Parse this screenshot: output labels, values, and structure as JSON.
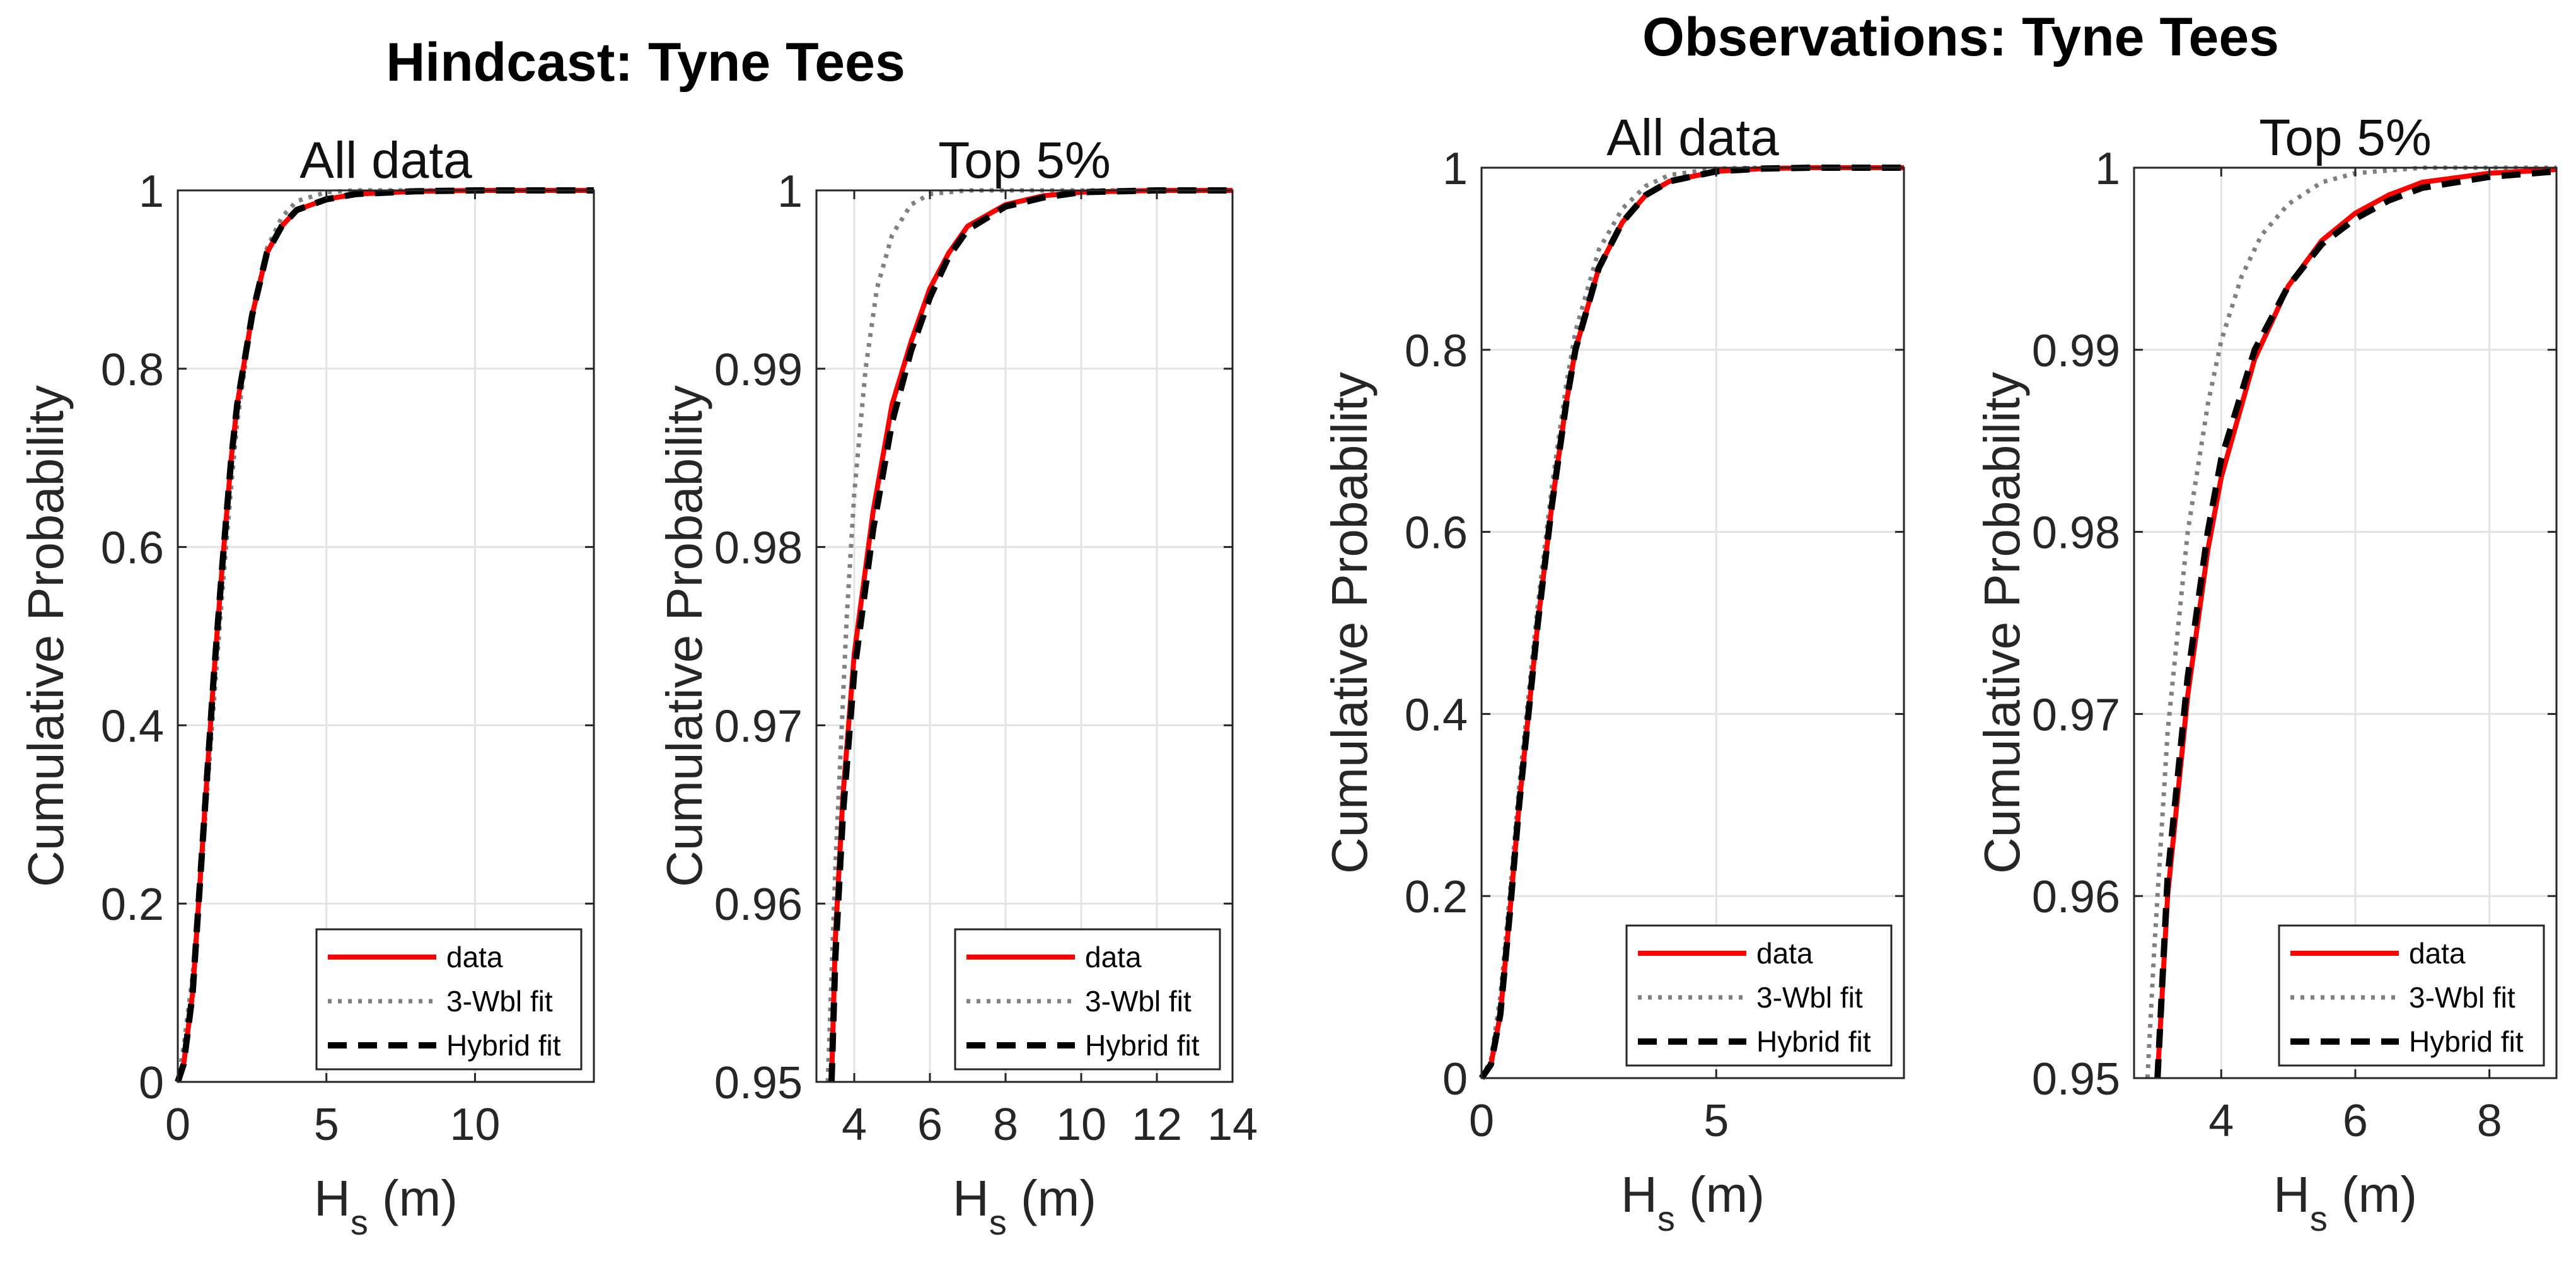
{
  "figure": {
    "group_titles": [
      "Hindcast: Tyne Tees",
      "Observations: Tyne Tees"
    ]
  },
  "legend": {
    "entries": [
      {
        "label": "data",
        "color": "#ff0000",
        "style": "solid"
      },
      {
        "label": "3-Wbl fit",
        "color": "#808080",
        "style": "dotted"
      },
      {
        "label": "Hybrid fit",
        "color": "#000000",
        "style": "dashed"
      }
    ],
    "placement": "bottom-right"
  },
  "chart_data": [
    {
      "type": "line",
      "group": "Hindcast: Tyne Tees",
      "title": "All data",
      "xlabel": "H_s (m)",
      "ylabel": "Cumulative Probability",
      "xlim": [
        0,
        14
      ],
      "ylim": [
        0,
        1
      ],
      "xticks": [
        0,
        5,
        10
      ],
      "yticks": [
        0,
        0.2,
        0.4,
        0.6,
        0.8,
        1
      ],
      "ytick_labels": [
        "0",
        "0.2",
        "0.4",
        "0.6",
        "0.8",
        "1"
      ],
      "grid": true,
      "series": [
        {
          "name": "data",
          "x": [
            0,
            0.2,
            0.5,
            0.8,
            1.0,
            1.2,
            1.5,
            1.8,
            2.0,
            2.5,
            3.0,
            3.5,
            4.0,
            5.0,
            6.0,
            8.0,
            10.0,
            14.0
          ],
          "y": [
            0,
            0.02,
            0.1,
            0.25,
            0.35,
            0.45,
            0.58,
            0.7,
            0.76,
            0.86,
            0.93,
            0.96,
            0.978,
            0.99,
            0.996,
            0.999,
            1.0,
            1.0
          ]
        },
        {
          "name": "3-Wbl fit",
          "x": [
            0,
            0.2,
            0.5,
            0.8,
            1.0,
            1.2,
            1.5,
            1.8,
            2.0,
            2.5,
            3.0,
            3.5,
            4.0,
            5.0,
            6.0,
            8.0,
            14.0
          ],
          "y": [
            0,
            0.04,
            0.12,
            0.24,
            0.33,
            0.42,
            0.55,
            0.67,
            0.74,
            0.86,
            0.935,
            0.97,
            0.988,
            0.998,
            1.0,
            1.0,
            1.0
          ]
        },
        {
          "name": "Hybrid fit",
          "x": [
            0,
            0.2,
            0.5,
            0.8,
            1.0,
            1.2,
            1.5,
            1.8,
            2.0,
            2.5,
            3.0,
            3.5,
            4.0,
            5.0,
            6.0,
            8.0,
            10.0,
            14.0
          ],
          "y": [
            0,
            0.02,
            0.1,
            0.25,
            0.35,
            0.45,
            0.58,
            0.7,
            0.76,
            0.86,
            0.93,
            0.96,
            0.978,
            0.99,
            0.996,
            0.999,
            1.0,
            1.0
          ]
        }
      ]
    },
    {
      "type": "line",
      "group": "Hindcast: Tyne Tees",
      "title": "Top 5%",
      "xlabel": "H_s (m)",
      "ylabel": "Cumulative Probability",
      "xlim": [
        3,
        14
      ],
      "ylim": [
        0.95,
        1
      ],
      "xticks": [
        4,
        6,
        8,
        10,
        12,
        14
      ],
      "yticks": [
        0.95,
        0.96,
        0.97,
        0.98,
        0.99,
        1
      ],
      "ytick_labels": [
        "0.95",
        "0.96",
        "0.97",
        "0.98",
        "0.99",
        "1"
      ],
      "grid": true,
      "series": [
        {
          "name": "data",
          "x": [
            3.4,
            3.5,
            3.7,
            4.0,
            4.5,
            5.0,
            5.5,
            6.0,
            6.5,
            7.0,
            8.0,
            9.0,
            10.0,
            12.0,
            14.0
          ],
          "y": [
            0.95,
            0.958,
            0.966,
            0.974,
            0.982,
            0.988,
            0.9915,
            0.9945,
            0.9965,
            0.998,
            0.9992,
            0.9997,
            0.9999,
            1.0,
            1.0
          ]
        },
        {
          "name": "3-Wbl fit",
          "x": [
            3.3,
            3.5,
            3.8,
            4.0,
            4.3,
            4.6,
            5.0,
            5.5,
            6.0,
            7.0,
            8.0,
            14.0
          ],
          "y": [
            0.95,
            0.962,
            0.976,
            0.983,
            0.99,
            0.9945,
            0.9975,
            0.9992,
            0.9998,
            1.0,
            1.0,
            1.0
          ]
        },
        {
          "name": "Hybrid fit",
          "x": [
            3.4,
            3.5,
            3.7,
            4.0,
            4.5,
            5.0,
            5.5,
            6.0,
            6.5,
            7.0,
            8.0,
            9.0,
            10.0,
            12.0,
            14.0
          ],
          "y": [
            0.95,
            0.957,
            0.965,
            0.973,
            0.981,
            0.987,
            0.991,
            0.994,
            0.9963,
            0.9978,
            0.9991,
            0.9996,
            0.9999,
            1.0,
            1.0
          ]
        }
      ]
    },
    {
      "type": "line",
      "group": "Observations: Tyne Tees",
      "title": "All data",
      "xlabel": "H_s (m)",
      "ylabel": "Cumulative Probability",
      "xlim": [
        0,
        9
      ],
      "ylim": [
        0,
        1
      ],
      "xticks": [
        0,
        5
      ],
      "yticks": [
        0,
        0.2,
        0.4,
        0.6,
        0.8,
        1
      ],
      "ytick_labels": [
        "0",
        "0.2",
        "0.4",
        "0.6",
        "0.8",
        "1"
      ],
      "grid": true,
      "series": [
        {
          "name": "data",
          "x": [
            0,
            0.2,
            0.4,
            0.6,
            0.8,
            1.0,
            1.2,
            1.5,
            1.8,
            2.0,
            2.5,
            3.0,
            3.5,
            4.0,
            5.0,
            6.0,
            7.0,
            9.0
          ],
          "y": [
            0,
            0.015,
            0.07,
            0.18,
            0.3,
            0.4,
            0.5,
            0.63,
            0.74,
            0.8,
            0.89,
            0.94,
            0.97,
            0.985,
            0.996,
            0.999,
            1.0,
            1.0
          ]
        },
        {
          "name": "3-Wbl fit",
          "x": [
            0,
            0.2,
            0.4,
            0.6,
            0.8,
            1.0,
            1.2,
            1.5,
            1.8,
            2.0,
            2.5,
            3.0,
            3.5,
            4.0,
            5.0,
            6.0,
            9.0
          ],
          "y": [
            0,
            0.02,
            0.09,
            0.2,
            0.32,
            0.42,
            0.52,
            0.65,
            0.76,
            0.82,
            0.91,
            0.955,
            0.98,
            0.992,
            0.999,
            1.0,
            1.0
          ]
        },
        {
          "name": "Hybrid fit",
          "x": [
            0,
            0.2,
            0.4,
            0.6,
            0.8,
            1.0,
            1.2,
            1.5,
            1.8,
            2.0,
            2.5,
            3.0,
            3.5,
            4.0,
            5.0,
            6.0,
            7.0,
            9.0
          ],
          "y": [
            0,
            0.015,
            0.07,
            0.18,
            0.3,
            0.4,
            0.5,
            0.63,
            0.74,
            0.8,
            0.89,
            0.94,
            0.97,
            0.985,
            0.996,
            0.999,
            1.0,
            1.0
          ]
        }
      ]
    },
    {
      "type": "line",
      "group": "Observations: Tyne Tees",
      "title": "Top 5%",
      "xlabel": "H_s (m)",
      "ylabel": "Cumulative Probability",
      "xlim": [
        2.7,
        9
      ],
      "ylim": [
        0.95,
        1
      ],
      "xticks": [
        4,
        6,
        8
      ],
      "yticks": [
        0.95,
        0.96,
        0.97,
        0.98,
        0.99,
        1
      ],
      "ytick_labels": [
        "0.95",
        "0.96",
        "0.97",
        "0.98",
        "0.99",
        "1"
      ],
      "grid": true,
      "series": [
        {
          "name": "data",
          "x": [
            3.05,
            3.2,
            3.5,
            3.8,
            4.0,
            4.5,
            5.0,
            5.5,
            6.0,
            6.5,
            7.0,
            8.0,
            9.0
          ],
          "y": [
            0.95,
            0.96,
            0.971,
            0.979,
            0.983,
            0.9895,
            0.9935,
            0.996,
            0.9975,
            0.9985,
            0.9992,
            0.9997,
            0.9999
          ]
        },
        {
          "name": "3-Wbl fit",
          "x": [
            2.9,
            3.0,
            3.2,
            3.5,
            3.8,
            4.0,
            4.3,
            4.6,
            5.0,
            5.5,
            6.0,
            7.0,
            9.0
          ],
          "y": [
            0.95,
            0.957,
            0.969,
            0.98,
            0.987,
            0.9905,
            0.994,
            0.9963,
            0.998,
            0.9992,
            0.9997,
            1.0,
            1.0
          ]
        },
        {
          "name": "Hybrid fit",
          "x": [
            3.05,
            3.2,
            3.5,
            3.8,
            4.0,
            4.5,
            5.0,
            5.5,
            6.0,
            6.5,
            7.0,
            8.0,
            9.0
          ],
          "y": [
            0.95,
            0.961,
            0.972,
            0.98,
            0.984,
            0.99,
            0.9935,
            0.9958,
            0.9972,
            0.9982,
            0.9989,
            0.9995,
            0.9998
          ]
        }
      ]
    }
  ]
}
